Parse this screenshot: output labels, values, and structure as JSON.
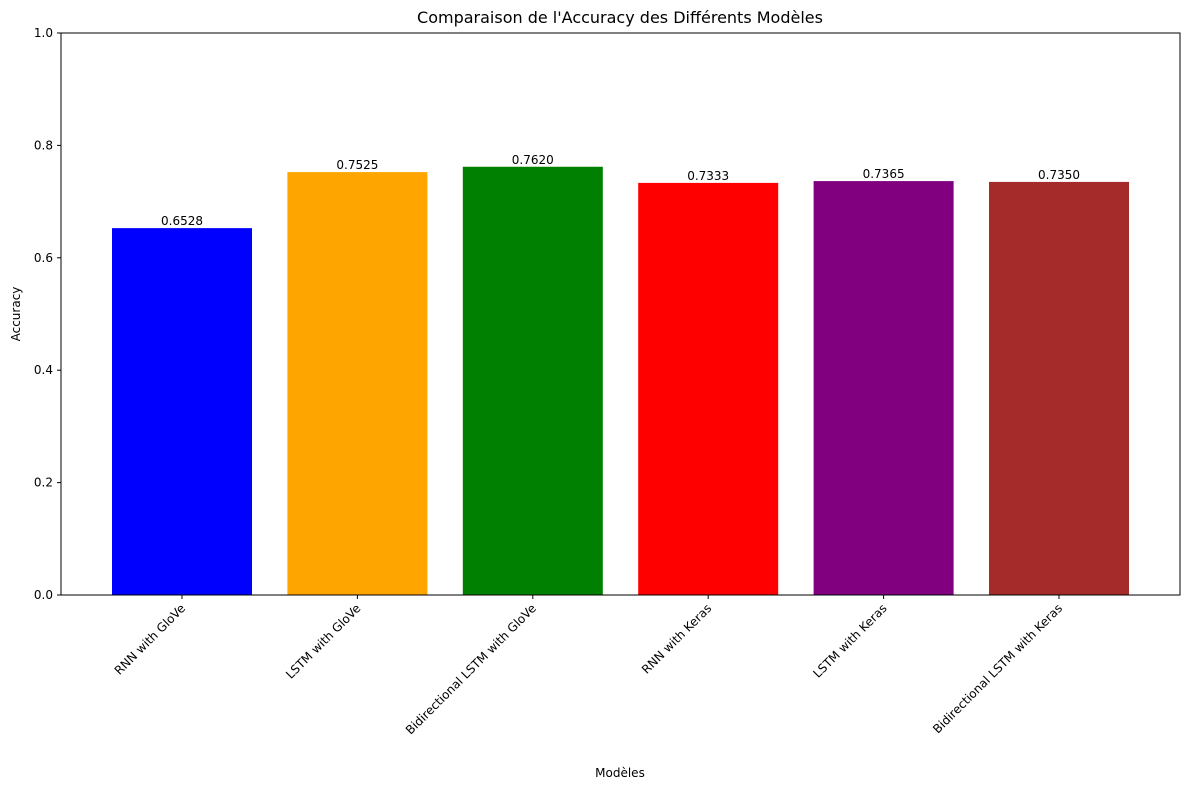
{
  "chart_data": {
    "type": "bar",
    "title": "Comparaison de l'Accuracy des Différents Modèles",
    "xlabel": "Modèles",
    "ylabel": "Accuracy",
    "ylim": [
      0,
      1
    ],
    "yticks": [
      "0.0",
      "0.2",
      "0.4",
      "0.6",
      "0.8",
      "1.0"
    ],
    "categories": [
      "RNN with GloVe",
      "LSTM with GloVe",
      "Bidirectional LSTM with GloVe",
      "RNN with Keras",
      "LSTM with Keras",
      "Bidirectional LSTM with Keras"
    ],
    "values": [
      0.6528,
      0.7525,
      0.762,
      0.7333,
      0.7365,
      0.735
    ],
    "value_labels": [
      "0.6528",
      "0.7525",
      "0.7620",
      "0.7333",
      "0.7365",
      "0.7350"
    ],
    "colors": [
      "#0000ff",
      "#ffa500",
      "#008000",
      "#ff0000",
      "#800080",
      "#a52a2a"
    ],
    "grid": false,
    "legend": "none"
  }
}
